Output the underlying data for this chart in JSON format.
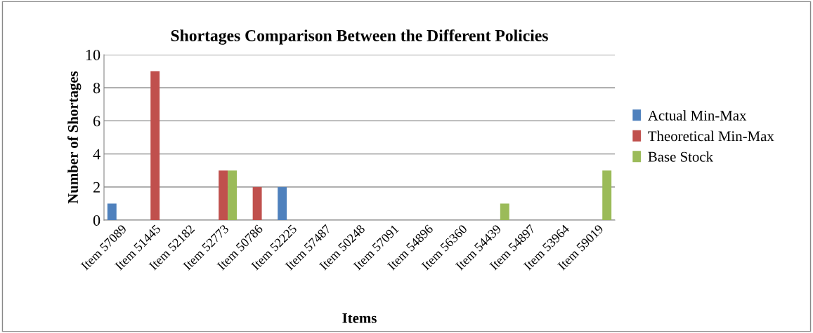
{
  "chart_data": {
    "type": "bar",
    "title": "Shortages Comparison Between the Different Policies",
    "xlabel": "Items",
    "ylabel": "Number of Shortages",
    "categories": [
      "Item 57089",
      "Item 51445",
      "Item 52182",
      "Item 52773",
      "Item 50786",
      "Item 52225",
      "Item 57487",
      "Item 50248",
      "Item 57091",
      "Item 54896",
      "Item 56360",
      "Item 54439",
      "Item 54897",
      "Item 53964",
      "Item 59019"
    ],
    "series": [
      {
        "name": "Actual Min-Max",
        "color": "#4f81bd",
        "values": [
          1,
          0,
          0,
          0,
          0,
          2,
          0,
          0,
          0,
          0,
          0,
          0,
          0,
          0,
          0
        ]
      },
      {
        "name": "Theoretical Min-Max",
        "color": "#c0504d",
        "values": [
          0,
          9,
          0,
          3,
          2,
          0,
          0,
          0,
          0,
          0,
          0,
          0,
          0,
          0,
          0
        ]
      },
      {
        "name": "Base Stock",
        "color": "#9bbb59",
        "values": [
          0,
          0,
          0,
          3,
          0,
          0,
          0,
          0,
          0,
          0,
          0,
          1,
          0,
          0,
          3
        ]
      }
    ],
    "ylim": [
      0,
      10
    ],
    "yticks": [
      0,
      2,
      4,
      6,
      8,
      10
    ],
    "grid": "y",
    "legend": "right"
  }
}
